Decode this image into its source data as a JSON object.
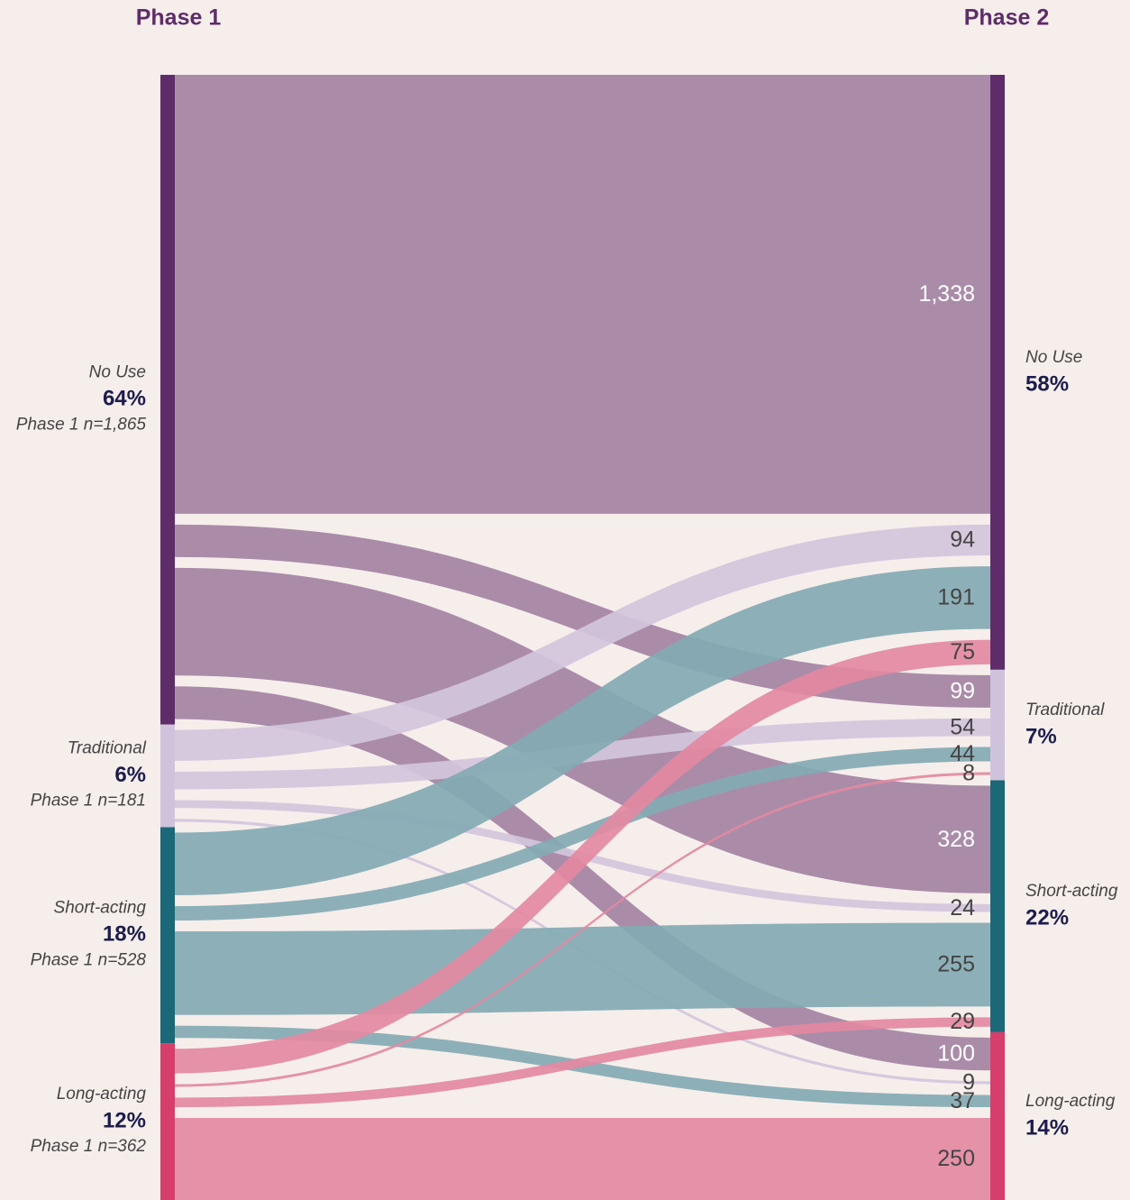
{
  "chart_data": {
    "type": "sankey",
    "columns": [
      "Phase 1",
      "Phase 2"
    ],
    "sources": [
      {
        "name": "No Use",
        "percent": "64%",
        "n": "Phase 1 n=1,865",
        "color": "#5e2d69",
        "flow_color": "#a383a3",
        "label_color": "#ffffff"
      },
      {
        "name": "Traditional",
        "percent": "6%",
        "n": "Phase 1 n=181",
        "color": "#cfc3dc",
        "flow_color": "#d2c6dc",
        "label_color": "#444444"
      },
      {
        "name": "Short-acting",
        "percent": "18%",
        "n": "Phase 1 n=528",
        "color": "#1a6878",
        "flow_color": "#83aab3",
        "label_color": "#444444"
      },
      {
        "name": "Long-acting",
        "percent": "12%",
        "n": "Phase 1 n=362",
        "color": "#d63f6b",
        "flow_color": "#e389a1",
        "label_color": "#444444"
      }
    ],
    "targets": [
      {
        "name": "No Use",
        "percent": "58%",
        "color": "#5e2d69"
      },
      {
        "name": "Traditional",
        "percent": "7%",
        "color": "#cfc3dc"
      },
      {
        "name": "Short-acting",
        "percent": "22%",
        "color": "#1a6878"
      },
      {
        "name": "Long-acting",
        "percent": "14%",
        "color": "#d63f6b"
      }
    ],
    "links": [
      {
        "source": 0,
        "target": 0,
        "value": 1338,
        "value_label": "1,338"
      },
      {
        "source": 0,
        "target": 1,
        "value": 99
      },
      {
        "source": 0,
        "target": 2,
        "value": 328
      },
      {
        "source": 0,
        "target": 3,
        "value": 100
      },
      {
        "source": 1,
        "target": 0,
        "value": 94
      },
      {
        "source": 1,
        "target": 1,
        "value": 54
      },
      {
        "source": 1,
        "target": 2,
        "value": 24
      },
      {
        "source": 1,
        "target": 3,
        "value": 9
      },
      {
        "source": 2,
        "target": 0,
        "value": 191
      },
      {
        "source": 2,
        "target": 1,
        "value": 44
      },
      {
        "source": 2,
        "target": 2,
        "value": 255
      },
      {
        "source": 2,
        "target": 3,
        "value": 37
      },
      {
        "source": 3,
        "target": 0,
        "value": 75
      },
      {
        "source": 3,
        "target": 1,
        "value": 8
      },
      {
        "source": 3,
        "target": 2,
        "value": 29
      },
      {
        "source": 3,
        "target": 3,
        "value": 250
      }
    ]
  }
}
